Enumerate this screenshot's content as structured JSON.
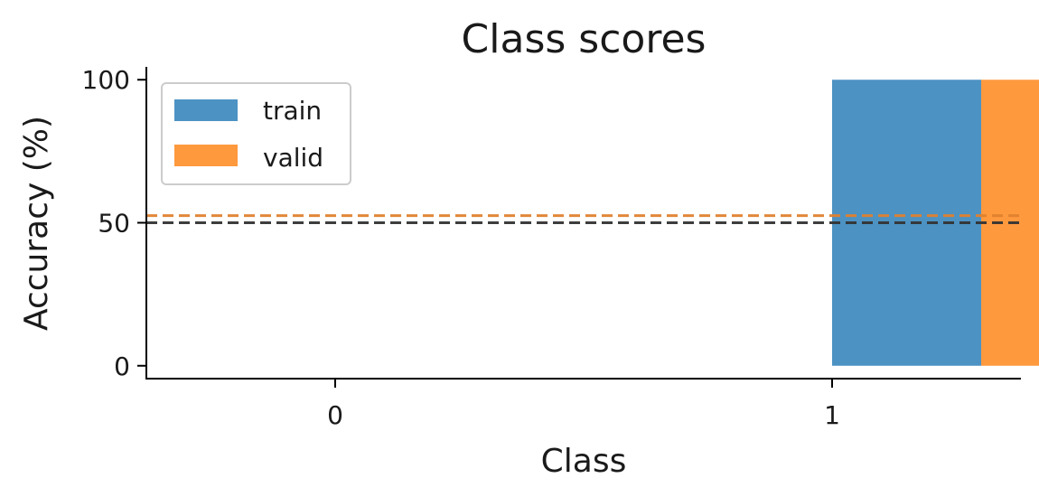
{
  "chart_data": {
    "type": "bar",
    "title": "Class scores",
    "xlabel": "Class",
    "ylabel": "Accuracy (%)",
    "categories": [
      "0",
      "1"
    ],
    "x_ticks": [
      "0",
      "1"
    ],
    "y_ticks": [
      "0",
      "50",
      "100"
    ],
    "xlim": [
      -0.38,
      1.38
    ],
    "ylim": [
      -4.5,
      104.5
    ],
    "grid": false,
    "legend_position": "top-left",
    "series": [
      {
        "name": "train",
        "color": "#4c92c3",
        "values": [
          0,
          100
        ]
      },
      {
        "name": "valid",
        "color": "#ff993e",
        "values": [
          0,
          100
        ]
      }
    ],
    "reference_lines": [
      {
        "y": 52.5,
        "color": "#e0812f",
        "style": "dashed"
      },
      {
        "y": 50,
        "color": "#333333",
        "style": "dashed"
      }
    ]
  }
}
